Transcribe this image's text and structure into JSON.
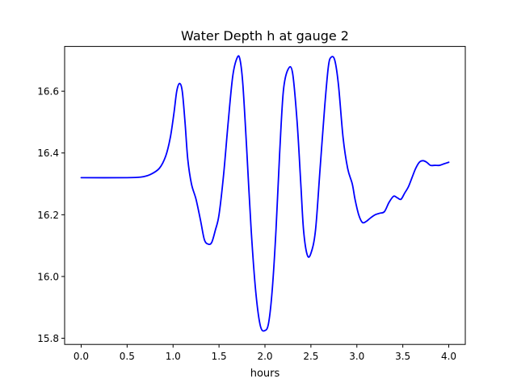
{
  "chart_data": {
    "type": "line",
    "title": "Water Depth h at gauge 2",
    "xlabel": "hours",
    "ylabel": "",
    "xlim": [
      -0.18,
      4.18
    ],
    "ylim": [
      15.78,
      16.745
    ],
    "xticks": [
      0.0,
      0.5,
      1.0,
      1.5,
      2.0,
      2.5,
      3.0,
      3.5,
      4.0
    ],
    "xtick_labels": [
      "0.0",
      "0.5",
      "1.0",
      "1.5",
      "2.0",
      "2.5",
      "3.0",
      "3.5",
      "4.0"
    ],
    "yticks": [
      15.8,
      16.0,
      16.2,
      16.4,
      16.6
    ],
    "ytick_labels": [
      "15.8",
      "16.0",
      "16.2",
      "16.4",
      "16.6"
    ],
    "grid": false,
    "legend": "none",
    "series": [
      {
        "color": "#0000ff",
        "x": [
          0.0,
          0.5,
          0.65,
          0.75,
          0.85,
          0.92,
          0.97,
          1.01,
          1.04,
          1.07,
          1.1,
          1.13,
          1.16,
          1.2,
          1.25,
          1.3,
          1.34,
          1.38,
          1.42,
          1.46,
          1.5,
          1.55,
          1.6,
          1.65,
          1.7,
          1.73,
          1.76,
          1.8,
          1.85,
          1.9,
          1.95,
          2.0,
          2.04,
          2.08,
          2.12,
          2.16,
          2.2,
          2.25,
          2.3,
          2.35,
          2.39,
          2.42,
          2.46,
          2.5,
          2.55,
          2.6,
          2.65,
          2.69,
          2.72,
          2.76,
          2.8,
          2.85,
          2.9,
          2.95,
          2.98,
          3.02,
          3.06,
          3.1,
          3.15,
          3.2,
          3.25,
          3.3,
          3.35,
          3.4,
          3.44,
          3.48,
          3.52,
          3.56,
          3.6,
          3.64,
          3.68,
          3.72,
          3.76,
          3.8,
          3.85,
          3.9,
          3.95,
          4.0
        ],
        "y": [
          16.32,
          16.32,
          16.322,
          16.33,
          16.35,
          16.39,
          16.45,
          16.53,
          16.6,
          16.625,
          16.6,
          16.5,
          16.38,
          16.3,
          16.25,
          16.18,
          16.12,
          16.105,
          16.11,
          16.15,
          16.2,
          16.33,
          16.5,
          16.65,
          16.71,
          16.7,
          16.62,
          16.42,
          16.15,
          15.95,
          15.84,
          15.825,
          15.85,
          15.96,
          16.15,
          16.4,
          16.6,
          16.67,
          16.66,
          16.5,
          16.3,
          16.15,
          16.07,
          16.075,
          16.15,
          16.35,
          16.55,
          16.68,
          16.71,
          16.7,
          16.62,
          16.45,
          16.35,
          16.3,
          16.25,
          16.2,
          16.175,
          16.178,
          16.19,
          16.2,
          16.205,
          16.21,
          16.24,
          16.26,
          16.255,
          16.25,
          16.27,
          16.29,
          16.32,
          16.35,
          16.37,
          16.375,
          16.37,
          16.36,
          16.36,
          16.36,
          16.365,
          16.37
        ]
      }
    ]
  }
}
